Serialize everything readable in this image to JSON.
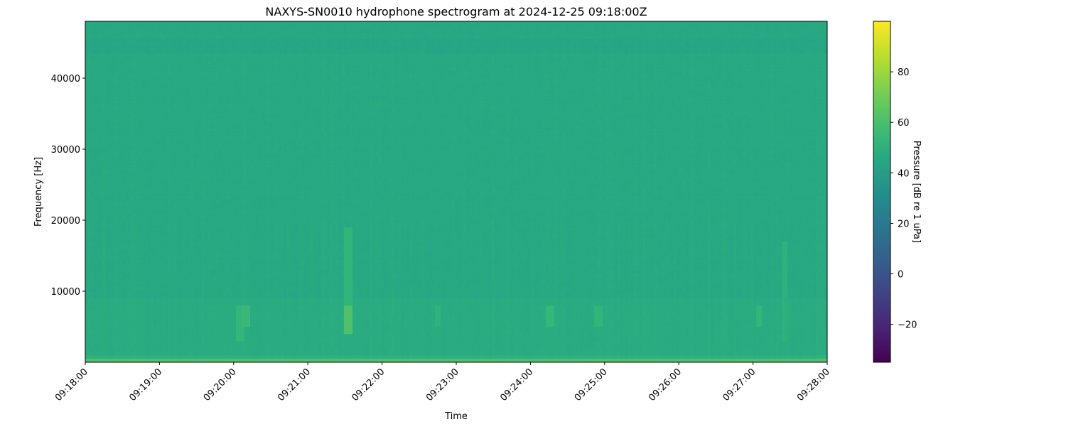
{
  "chart_data": {
    "type": "heatmap",
    "title": "NAXYS-SN0010 hydrophone spectrogram at 2024-12-25 09:18:00Z",
    "xlabel": "Time",
    "ylabel": "Frequency [Hz]",
    "colorbar_label": "Pressure [dB re 1 uPa]",
    "colormap": "viridis",
    "xlim": [
      "09:18:00",
      "09:28:00"
    ],
    "x_ticks": [
      "09:18:00",
      "09:19:00",
      "09:20:00",
      "09:21:00",
      "09:22:00",
      "09:23:00",
      "09:24:00",
      "09:25:00",
      "09:26:00",
      "09:27:00",
      "09:28:00"
    ],
    "ylim": [
      0,
      48000
    ],
    "y_ticks": [
      10000,
      20000,
      30000,
      40000
    ],
    "clim": [
      -35,
      100
    ],
    "colorbar_ticks": [
      -20,
      0,
      20,
      40,
      60,
      80
    ],
    "frequency_profile": [
      {
        "f_min": 0,
        "f_max": 500,
        "db": 62
      },
      {
        "f_min": 500,
        "f_max": 1000,
        "db": 51
      },
      {
        "f_min": 1000,
        "f_max": 9000,
        "db": 48
      },
      {
        "f_min": 9000,
        "f_max": 43500,
        "db": 46.5
      },
      {
        "f_min": 43500,
        "f_max": 45500,
        "db": 45
      },
      {
        "f_min": 45500,
        "f_max": 48000,
        "db": 46
      }
    ],
    "events": [
      {
        "time": "09:20:05",
        "f_min": 3000,
        "f_max": 8000,
        "db": 54
      },
      {
        "time": "09:20:10",
        "f_min": 5000,
        "f_max": 8000,
        "db": 56
      },
      {
        "time": "09:21:33",
        "f_min": 4000,
        "f_max": 8000,
        "db": 62
      },
      {
        "time": "09:21:33",
        "f_min": 8000,
        "f_max": 19000,
        "db": 53
      },
      {
        "time": "09:22:45",
        "f_min": 5000,
        "f_max": 8000,
        "db": 52
      },
      {
        "time": "09:24:16",
        "f_min": 5000,
        "f_max": 8000,
        "db": 55
      },
      {
        "time": "09:24:55",
        "f_min": 5000,
        "f_max": 8000,
        "db": 53
      },
      {
        "time": "09:27:05",
        "f_min": 5000,
        "f_max": 8000,
        "db": 53
      },
      {
        "time": "09:27:25",
        "f_min": 3000,
        "f_max": 17000,
        "db": 51
      }
    ]
  }
}
